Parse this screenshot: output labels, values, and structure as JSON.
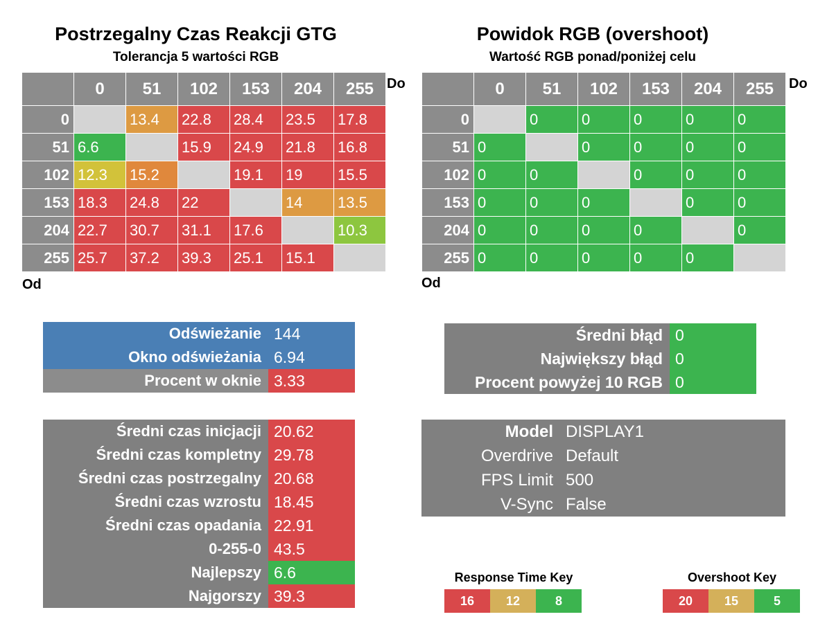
{
  "colors": {
    "red": "#d9484a",
    "orange": "#e0883c",
    "orange_mid": "#dd9a42",
    "yellow": "#d2c23a",
    "yellow_green": "#8dc63f",
    "green": "#3cb44f",
    "grey_header": "#8c8c8c",
    "diag": "#d4d4d4",
    "blue": "#4a7fb5"
  },
  "left": {
    "title": "Postrzegalny Czas Reakcji GTG",
    "subtitle": "Tolerancja 5 wartości RGB",
    "to_label": "Do",
    "from_label": "Od"
  },
  "right": {
    "title": "Powidok RGB (overshoot)",
    "subtitle": "Wartość RGB ponad/poniżej celu",
    "to_label": "Do",
    "from_label": "Od"
  },
  "chart_data": [
    {
      "type": "heatmap",
      "title": "Postrzegalny Czas Reakcji GTG",
      "subtitle": "Tolerancja 5 wartości RGB",
      "xlabel": "Do",
      "ylabel": "Od",
      "columns": [
        "0",
        "51",
        "102",
        "153",
        "204",
        "255"
      ],
      "rows": [
        "0",
        "51",
        "102",
        "153",
        "204",
        "255"
      ],
      "values": [
        [
          null,
          13.4,
          22.8,
          28.4,
          23.5,
          17.8
        ],
        [
          6.6,
          null,
          15.9,
          24.9,
          21.8,
          16.8
        ],
        [
          12.3,
          15.2,
          null,
          19.1,
          19,
          15.5
        ],
        [
          18.3,
          24.8,
          22,
          null,
          14,
          13.5
        ],
        [
          22.7,
          30.7,
          31.1,
          17.6,
          null,
          10.3
        ],
        [
          25.7,
          37.2,
          39.3,
          25.1,
          15.1,
          null
        ]
      ],
      "cell_colors": [
        [
          "diag",
          "orange_mid",
          "red",
          "red",
          "red",
          "red"
        ],
        [
          "green",
          "diag",
          "red",
          "red",
          "red",
          "red"
        ],
        [
          "yellow",
          "orange",
          "diag",
          "red",
          "red",
          "red"
        ],
        [
          "red",
          "red",
          "red",
          "diag",
          "orange_mid",
          "orange_mid"
        ],
        [
          "red",
          "red",
          "red",
          "red",
          "diag",
          "yellow_green"
        ],
        [
          "red",
          "red",
          "red",
          "red",
          "red",
          "diag"
        ]
      ]
    },
    {
      "type": "heatmap",
      "title": "Powidok RGB (overshoot)",
      "subtitle": "Wartość RGB ponad/poniżej celu",
      "xlabel": "Do",
      "ylabel": "Od",
      "columns": [
        "0",
        "51",
        "102",
        "153",
        "204",
        "255"
      ],
      "rows": [
        "0",
        "51",
        "102",
        "153",
        "204",
        "255"
      ],
      "values": [
        [
          null,
          0,
          0,
          0,
          0,
          0
        ],
        [
          0,
          null,
          0,
          0,
          0,
          0
        ],
        [
          0,
          0,
          null,
          0,
          0,
          0
        ],
        [
          0,
          0,
          0,
          null,
          0,
          0
        ],
        [
          0,
          0,
          0,
          0,
          null,
          0
        ],
        [
          0,
          0,
          0,
          0,
          0,
          null
        ]
      ],
      "cell_colors": [
        [
          "diag",
          "green",
          "green",
          "green",
          "green",
          "green"
        ],
        [
          "green",
          "diag",
          "green",
          "green",
          "green",
          "green"
        ],
        [
          "green",
          "green",
          "diag",
          "green",
          "green",
          "green"
        ],
        [
          "green",
          "green",
          "green",
          "diag",
          "green",
          "green"
        ],
        [
          "green",
          "green",
          "green",
          "green",
          "diag",
          "green"
        ],
        [
          "green",
          "green",
          "green",
          "green",
          "green",
          "diag"
        ]
      ]
    }
  ],
  "refresh_panel": {
    "rows": [
      {
        "label": "Odświeżanie",
        "value": "144",
        "label_bg": "blue",
        "value_bg": "blue"
      },
      {
        "label": "Okno odświeżania",
        "value": "6.94",
        "label_bg": "blue",
        "value_bg": "blue"
      },
      {
        "label": "Procent w oknie",
        "value": "3.33",
        "label_bg": "grey_header",
        "value_bg": "red"
      }
    ]
  },
  "error_panel": {
    "rows": [
      {
        "label": "Średni błąd",
        "value": "0"
      },
      {
        "label": "Największy błąd",
        "value": "0"
      },
      {
        "label": "Procent powyżej 10 RGB",
        "value": "0"
      }
    ]
  },
  "stats_panel": {
    "rows": [
      {
        "label": "Średni czas inicjacji",
        "value": "20.62",
        "value_bg": "red"
      },
      {
        "label": "Średni czas kompletny",
        "value": "29.78",
        "value_bg": "red"
      },
      {
        "label": "Średni czas postrzegalny",
        "value": "20.68",
        "value_bg": "red"
      },
      {
        "label": "Średni czas wzrostu",
        "value": "18.45",
        "value_bg": "red"
      },
      {
        "label": "Średni czas opadania",
        "value": "22.91",
        "value_bg": "red"
      },
      {
        "label": "0-255-0",
        "value": "43.5",
        "value_bg": "red"
      },
      {
        "label": "Najlepszy",
        "value": "6.6",
        "value_bg": "green"
      },
      {
        "label": "Najgorszy",
        "value": "39.3",
        "value_bg": "red"
      }
    ]
  },
  "info_panel": {
    "rows": [
      {
        "label": "Model",
        "value": "DISPLAY1",
        "bold": true
      },
      {
        "label": "Overdrive",
        "value": "Default",
        "bold": false
      },
      {
        "label": "FPS Limit",
        "value": "500",
        "bold": false
      },
      {
        "label": "V-Sync",
        "value": "False",
        "bold": false
      }
    ]
  },
  "response_key": {
    "title": "Response Time Key",
    "cells": [
      {
        "value": "16",
        "color": "red"
      },
      {
        "value": "12",
        "color": "yellow_key"
      },
      {
        "value": "8",
        "color": "green"
      }
    ]
  },
  "overshoot_key": {
    "title": "Overshoot Key",
    "cells": [
      {
        "value": "20",
        "color": "red"
      },
      {
        "value": "15",
        "color": "yellow_key"
      },
      {
        "value": "5",
        "color": "green"
      }
    ]
  }
}
